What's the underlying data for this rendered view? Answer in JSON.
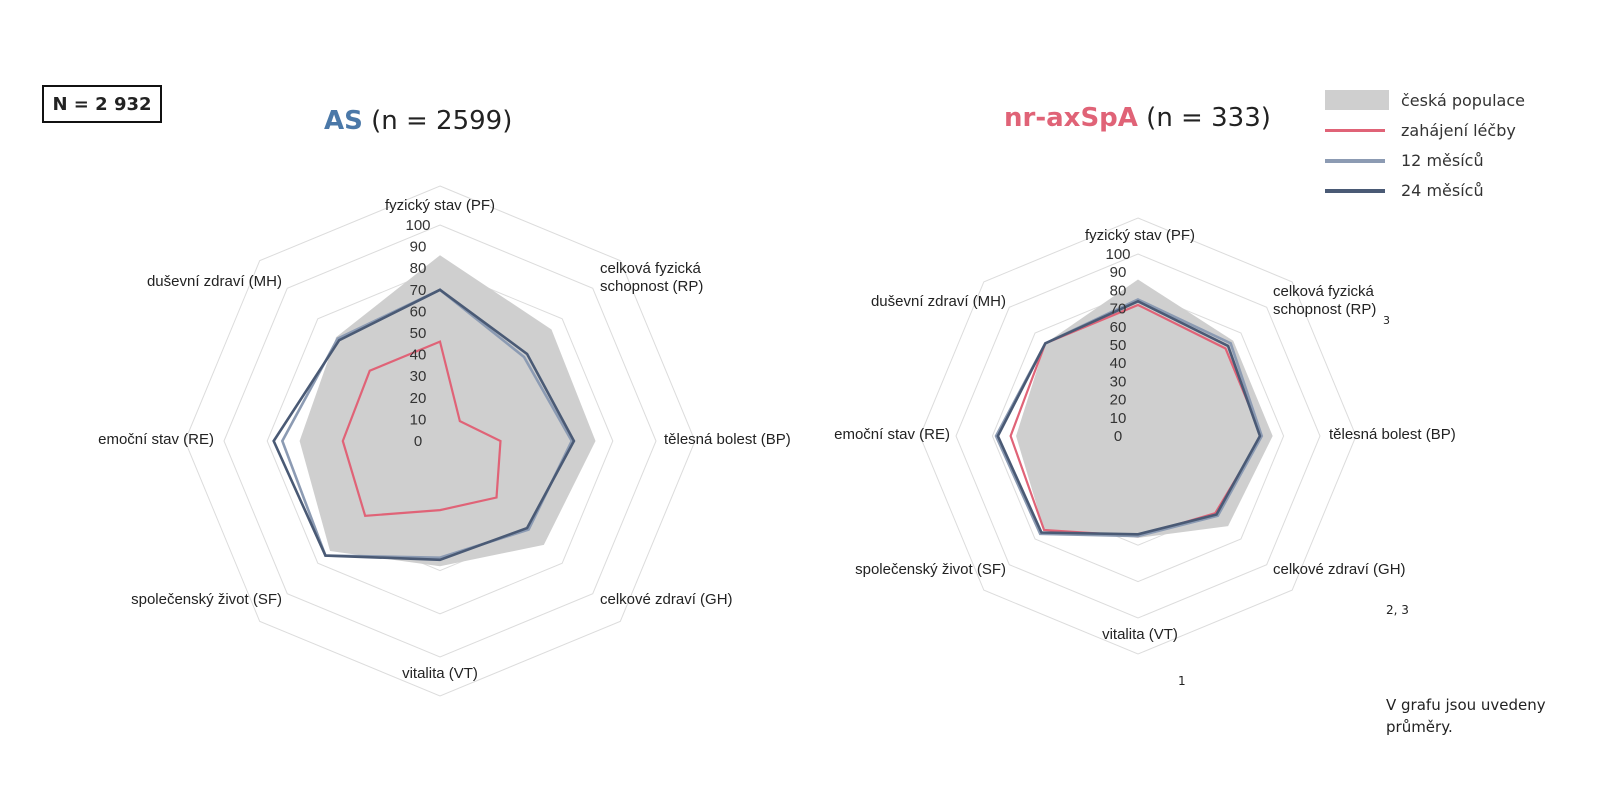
{
  "header": {
    "total_badge": "N = 2 932",
    "notes": {
      "n1": "1",
      "n23": "2, 3",
      "n3": "3",
      "average_note": "V grafu jsou uvedeny průměry."
    }
  },
  "legend": {
    "items": [
      {
        "label": "česká populace",
        "color": "#cfcfcf",
        "kind": "area"
      },
      {
        "label": "zahájení léčby",
        "color": "#e06377",
        "kind": "line"
      },
      {
        "label": "12 měsíců",
        "color": "#8c9bb3",
        "kind": "line"
      },
      {
        "label": "24 měsíců",
        "color": "#4a5a75",
        "kind": "line"
      }
    ]
  },
  "chart_data": [
    {
      "type": "radar",
      "title_highlight": "AS",
      "title_rest": " (n = 2599)",
      "title_color": "#4a78a8",
      "axes": [
        "fyzický stav (PF)",
        "celková fyzická\nschopnost (RP)",
        "tělesná bolest (BP)",
        "celkové zdraví (GH)",
        "vitalita (VT)",
        "společenský život (SF)",
        "emoční stav (RE)",
        "duševní zdraví (MH)"
      ],
      "rlim": [
        0,
        100
      ],
      "ticks": [
        "0",
        "10",
        "20",
        "30",
        "40",
        "50",
        "60",
        "70",
        "80",
        "90",
        "100"
      ],
      "series": [
        {
          "name": "česká populace",
          "values": [
            86,
            73,
            72,
            68,
            58,
            72,
            65,
            68
          ]
        },
        {
          "name": "zahájení léčby",
          "values": [
            46,
            13,
            28,
            37,
            32,
            49,
            45,
            46
          ]
        },
        {
          "name": "12 měsíců",
          "values": [
            70,
            55,
            61,
            58,
            54,
            75,
            73,
            67
          ]
        },
        {
          "name": "24 měsíců",
          "values": [
            70,
            57,
            62,
            57,
            55,
            75,
            77,
            66
          ]
        }
      ]
    },
    {
      "type": "radar",
      "title_highlight": "nr-axSpA",
      "title_rest": " (n = 333)",
      "title_color": "#e06377",
      "axes": [
        "fyzický stav (PF)",
        "celková fyzická\nschopnost (RP)",
        "tělesná bolest (BP)",
        "celkové zdraví (GH)",
        "vitalita (VT)",
        "společenský život (SF)",
        "emoční stav (RE)",
        "duševní zdraví (MH)"
      ],
      "rlim": [
        0,
        100
      ],
      "ticks": [
        "0",
        "10",
        "20",
        "30",
        "40",
        "50",
        "60",
        "70",
        "80",
        "90",
        "100"
      ],
      "series": [
        {
          "name": "česká populace",
          "values": [
            86,
            74,
            74,
            70,
            56,
            73,
            67,
            72
          ]
        },
        {
          "name": "zahájení léčby",
          "values": [
            72,
            68,
            68,
            60,
            55,
            73,
            70,
            72
          ]
        },
        {
          "name": "12 měsíců",
          "values": [
            75,
            72,
            68,
            62,
            55,
            76,
            78,
            72
          ]
        },
        {
          "name": "24 měsíců",
          "values": [
            74,
            70,
            67,
            61,
            54,
            75,
            77,
            72
          ]
        }
      ]
    }
  ]
}
